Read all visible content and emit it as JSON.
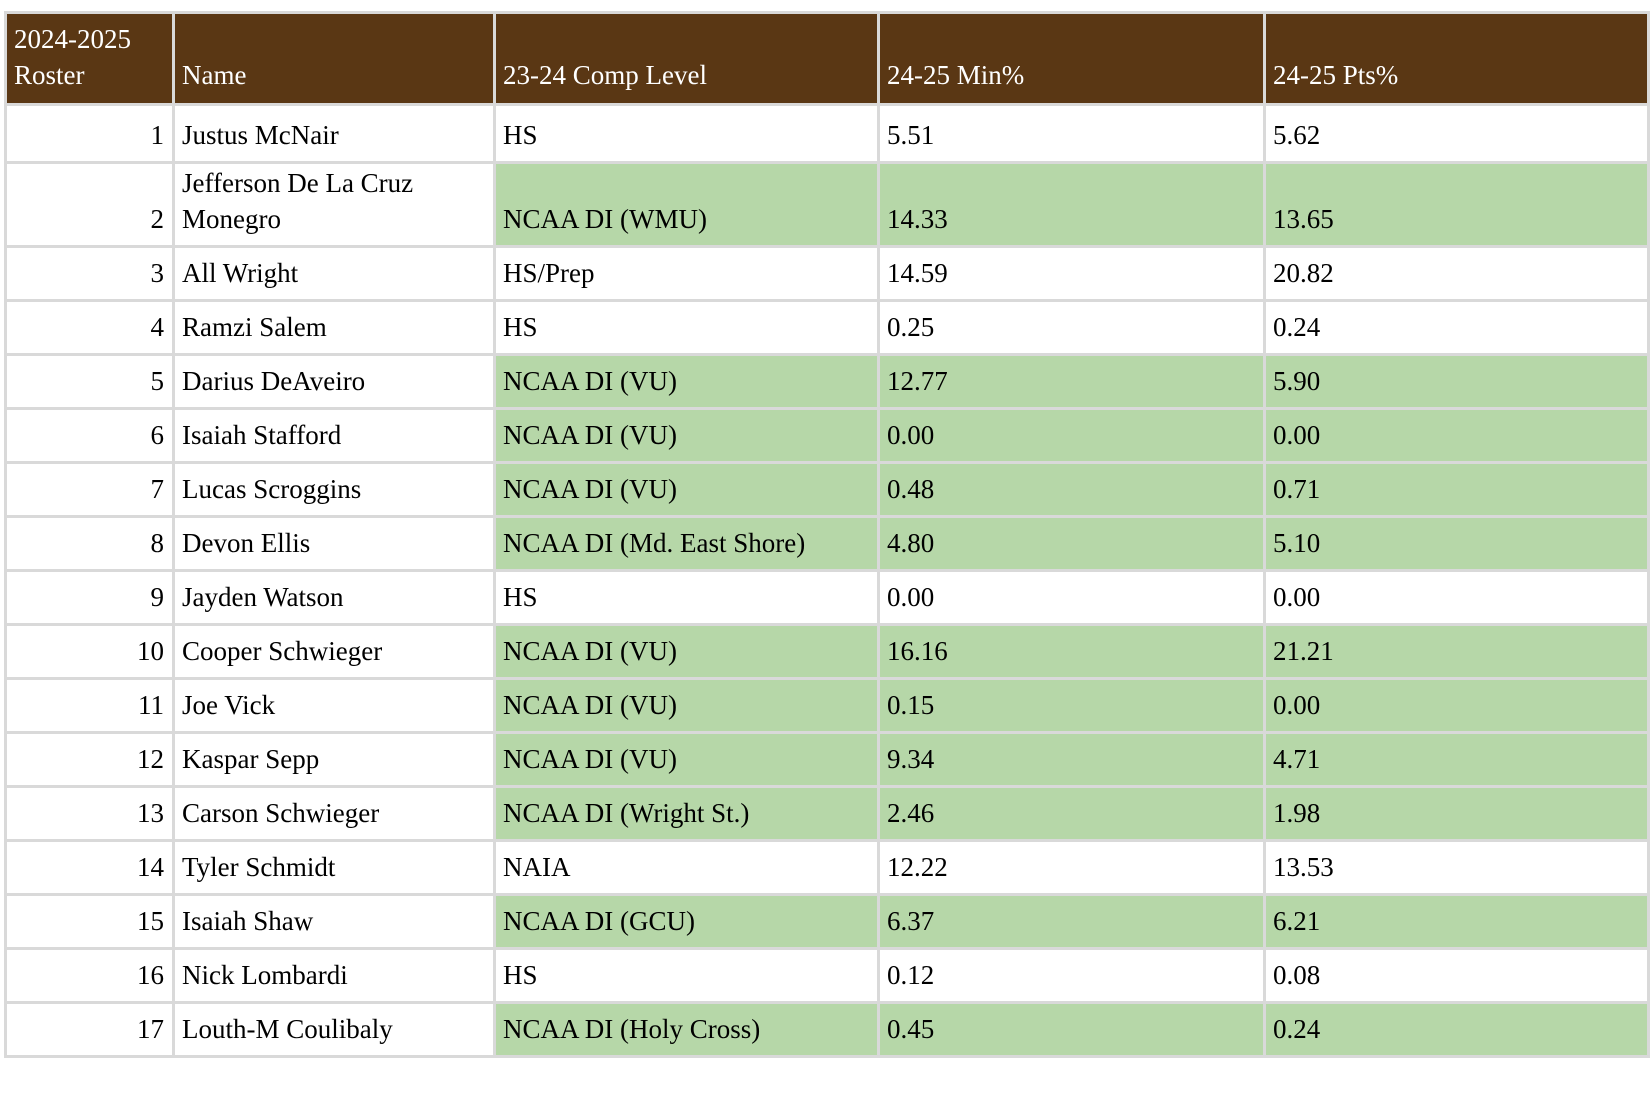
{
  "colors": {
    "header_bg": "#5a3714",
    "header_text": "#ffffff",
    "highlight_bg": "#b6d7a8",
    "grid_border": "#d9d9d9",
    "body_text": "#000000"
  },
  "table": {
    "columns": [
      {
        "key": "roster",
        "label": "2024-2025 Roster"
      },
      {
        "key": "name",
        "label": "Name"
      },
      {
        "key": "comp",
        "label": "23-24 Comp Level"
      },
      {
        "key": "min",
        "label": "24-25 Min%"
      },
      {
        "key": "pts",
        "label": "24-25 Pts%"
      }
    ],
    "rows": [
      {
        "roster": "1",
        "name": "Justus McNair",
        "comp": "HS",
        "min": "5.51",
        "pts": "5.62",
        "highlight": false
      },
      {
        "roster": "2",
        "name": "Jefferson De La Cruz Monegro",
        "comp": "NCAA DI (WMU)",
        "min": "14.33",
        "pts": "13.65",
        "highlight": true
      },
      {
        "roster": "3",
        "name": "All Wright",
        "comp": "HS/Prep",
        "min": "14.59",
        "pts": "20.82",
        "highlight": false
      },
      {
        "roster": "4",
        "name": "Ramzi Salem",
        "comp": "HS",
        "min": "0.25",
        "pts": "0.24",
        "highlight": false
      },
      {
        "roster": "5",
        "name": "Darius DeAveiro",
        "comp": "NCAA DI (VU)",
        "min": "12.77",
        "pts": "5.90",
        "highlight": true
      },
      {
        "roster": "6",
        "name": "Isaiah Stafford",
        "comp": "NCAA DI (VU)",
        "min": "0.00",
        "pts": "0.00",
        "highlight": true
      },
      {
        "roster": "7",
        "name": "Lucas Scroggins",
        "comp": "NCAA DI (VU)",
        "min": "0.48",
        "pts": "0.71",
        "highlight": true
      },
      {
        "roster": "8",
        "name": "Devon Ellis",
        "comp": "NCAA DI (Md. East Shore)",
        "min": "4.80",
        "pts": "5.10",
        "highlight": true
      },
      {
        "roster": "9",
        "name": "Jayden Watson",
        "comp": "HS",
        "min": "0.00",
        "pts": "0.00",
        "highlight": false
      },
      {
        "roster": "10",
        "name": "Cooper Schwieger",
        "comp": "NCAA DI (VU)",
        "min": "16.16",
        "pts": "21.21",
        "highlight": true
      },
      {
        "roster": "11",
        "name": "Joe Vick",
        "comp": "NCAA DI (VU)",
        "min": "0.15",
        "pts": "0.00",
        "highlight": true
      },
      {
        "roster": "12",
        "name": "Kaspar Sepp",
        "comp": "NCAA DI (VU)",
        "min": "9.34",
        "pts": "4.71",
        "highlight": true
      },
      {
        "roster": "13",
        "name": "Carson Schwieger",
        "comp": "NCAA DI (Wright St.)",
        "min": "2.46",
        "pts": "1.98",
        "highlight": true
      },
      {
        "roster": "14",
        "name": "Tyler Schmidt",
        "comp": "NAIA",
        "min": "12.22",
        "pts": "13.53",
        "highlight": false
      },
      {
        "roster": "15",
        "name": "Isaiah Shaw",
        "comp": "NCAA DI (GCU)",
        "min": "6.37",
        "pts": "6.21",
        "highlight": true
      },
      {
        "roster": "16",
        "name": "Nick Lombardi",
        "comp": "HS",
        "min": "0.12",
        "pts": "0.08",
        "highlight": false
      },
      {
        "roster": "17",
        "name": "Louth-M Coulibaly",
        "comp": "NCAA DI (Holy Cross)",
        "min": "0.45",
        "pts": "0.24",
        "highlight": true
      }
    ]
  }
}
